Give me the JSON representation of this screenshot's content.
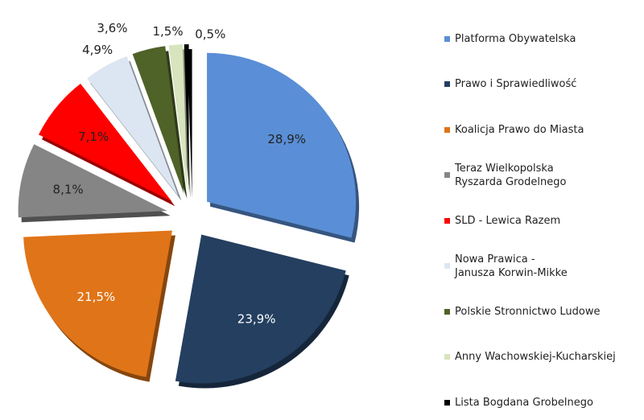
{
  "chart_data": {
    "type": "pie",
    "categories": [
      "Platforma Obywatelska",
      "Prawo i Sprawiedliwość",
      "Koalicja Prawo do Miasta",
      "Teraz Wielkopolska\nRyszarda Grodelnego",
      "SLD - Lewica Razem",
      "Nowa Prawica -\nJanusza Korwin-Mikke",
      "Polskie Stronnictwo Ludowe",
      "Anny Wachowskiej-Kucharskiej",
      "Lista Bogdana Grobelnego"
    ],
    "values": [
      28.9,
      23.9,
      21.5,
      8.1,
      7.1,
      4.9,
      3.6,
      1.5,
      0.5
    ],
    "value_labels": [
      "28,9%",
      "23,9%",
      "21,5%",
      "8,1%",
      "7,1%",
      "4,9%",
      "3,6%",
      "1,5%",
      "0,5%"
    ],
    "colors": [
      "#5a8ed6",
      "#243f60",
      "#e07418",
      "#858585",
      "#ff0000",
      "#dce6f2",
      "#4f6228",
      "#d7e4bd",
      "#000000"
    ],
    "legend": "right"
  }
}
